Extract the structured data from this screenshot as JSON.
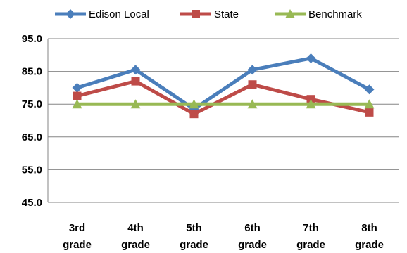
{
  "chart_data": {
    "type": "line",
    "categories": [
      [
        "3rd",
        "grade"
      ],
      [
        "4th",
        "grade"
      ],
      [
        "5th",
        "grade"
      ],
      [
        "6th",
        "grade"
      ],
      [
        "7th",
        "grade"
      ],
      [
        "8th",
        "grade"
      ]
    ],
    "series": [
      {
        "name": "Edison Local",
        "values": [
          80.0,
          85.5,
          73.5,
          85.5,
          89.0,
          79.5
        ],
        "color": "#4a7ebb",
        "marker": "diamond"
      },
      {
        "name": "State",
        "values": [
          77.5,
          82.0,
          72.0,
          81.0,
          76.5,
          72.5
        ],
        "color": "#be4b48",
        "marker": "square"
      },
      {
        "name": "Benchmark",
        "values": [
          75.0,
          75.0,
          75.0,
          75.0,
          75.0,
          75.0
        ],
        "color": "#98b954",
        "marker": "triangle"
      }
    ],
    "y_ticks": [
      "45.0",
      "55.0",
      "65.0",
      "75.0",
      "85.0",
      "95.0"
    ],
    "ylim": [
      45,
      95
    ],
    "grid": true,
    "legend_position": "top"
  }
}
